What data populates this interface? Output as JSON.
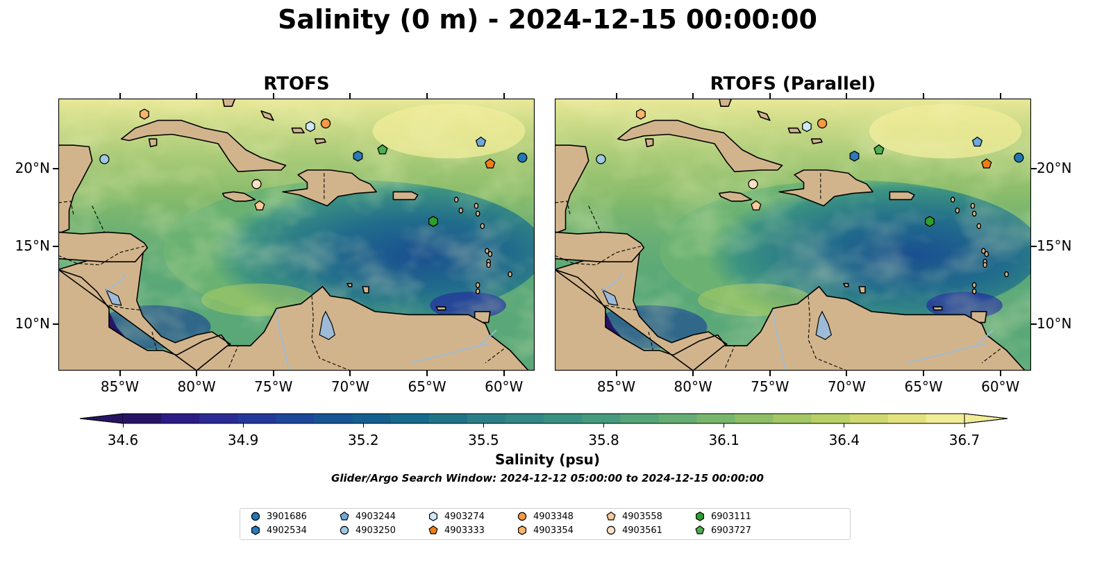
{
  "figure": {
    "title": "Salinity (0 m) - 2024-12-15 00:00:00",
    "search_window": "Glider/Argo Search Window: 2024-12-12 05:00:00 to 2024-12-15 00:00:00"
  },
  "panels": [
    {
      "title": "RTOFS"
    },
    {
      "title": "RTOFS (Parallel)"
    }
  ],
  "map_axes": {
    "lon_range": [
      -89.0,
      -58.0
    ],
    "lat_range": [
      7.0,
      24.5
    ],
    "lon_ticks": [
      "85°W",
      "80°W",
      "75°W",
      "70°W",
      "65°W",
      "60°W"
    ],
    "lat_ticks": [
      "20°N",
      "15°N",
      "10°N"
    ]
  },
  "colorbar": {
    "label": "Salinity (psu)",
    "min": 34.6,
    "max": 36.7,
    "ticks": [
      "34.6",
      "34.9",
      "35.2",
      "35.5",
      "35.8",
      "36.1",
      "36.4",
      "36.7"
    ],
    "colors": [
      "#271564",
      "#2b1c86",
      "#2a2b97",
      "#24389c",
      "#1c479a",
      "#175494",
      "#155f8e",
      "#166a8b",
      "#1f7488",
      "#2c7e86",
      "#338784",
      "#3b9181",
      "#469a7d",
      "#55a47a",
      "#66ad74",
      "#79b66d",
      "#8ebf67",
      "#a3c764",
      "#b9d066",
      "#cfd96f",
      "#e4e27f",
      "#f1ec98"
    ],
    "land_color": "#d2b48c",
    "lake_color": "#9dbbd8"
  },
  "floats": [
    {
      "id": "3901686",
      "marker": "circle",
      "color": "#1f77b4",
      "lon": -58.8,
      "lat": 20.7
    },
    {
      "id": "4902534",
      "marker": "hexagon",
      "color": "#2b7bba",
      "lon": -69.5,
      "lat": 20.8
    },
    {
      "id": "4903244",
      "marker": "pentagon",
      "color": "#6fa8dc",
      "lon": -61.5,
      "lat": 21.7
    },
    {
      "id": "4903250",
      "marker": "circle",
      "color": "#9ecae1",
      "lon": -86.0,
      "lat": 20.6
    },
    {
      "id": "4903274",
      "marker": "hexagon",
      "color": "#cfe8f7",
      "lon": -72.6,
      "lat": 22.7
    },
    {
      "id": "4903333",
      "marker": "pentagon",
      "color": "#f07e16",
      "lon": -60.9,
      "lat": 20.3
    },
    {
      "id": "4903348",
      "marker": "circle",
      "color": "#f59a41",
      "lon": -71.6,
      "lat": 22.9
    },
    {
      "id": "4903354",
      "marker": "hexagon",
      "color": "#f9b46d",
      "lon": -83.4,
      "lat": 23.5
    },
    {
      "id": "4903558",
      "marker": "pentagon",
      "color": "#fcc89a",
      "lon": -75.9,
      "lat": 17.6
    },
    {
      "id": "4903561",
      "marker": "circle",
      "color": "#fde0c5",
      "lon": -76.1,
      "lat": 19.0
    },
    {
      "id": "6903111",
      "marker": "hexagon",
      "color": "#2ca02c",
      "lon": -64.6,
      "lat": 16.6
    },
    {
      "id": "6903727",
      "marker": "pentagon",
      "color": "#4caf50",
      "lon": -67.9,
      "lat": 21.2
    }
  ]
}
